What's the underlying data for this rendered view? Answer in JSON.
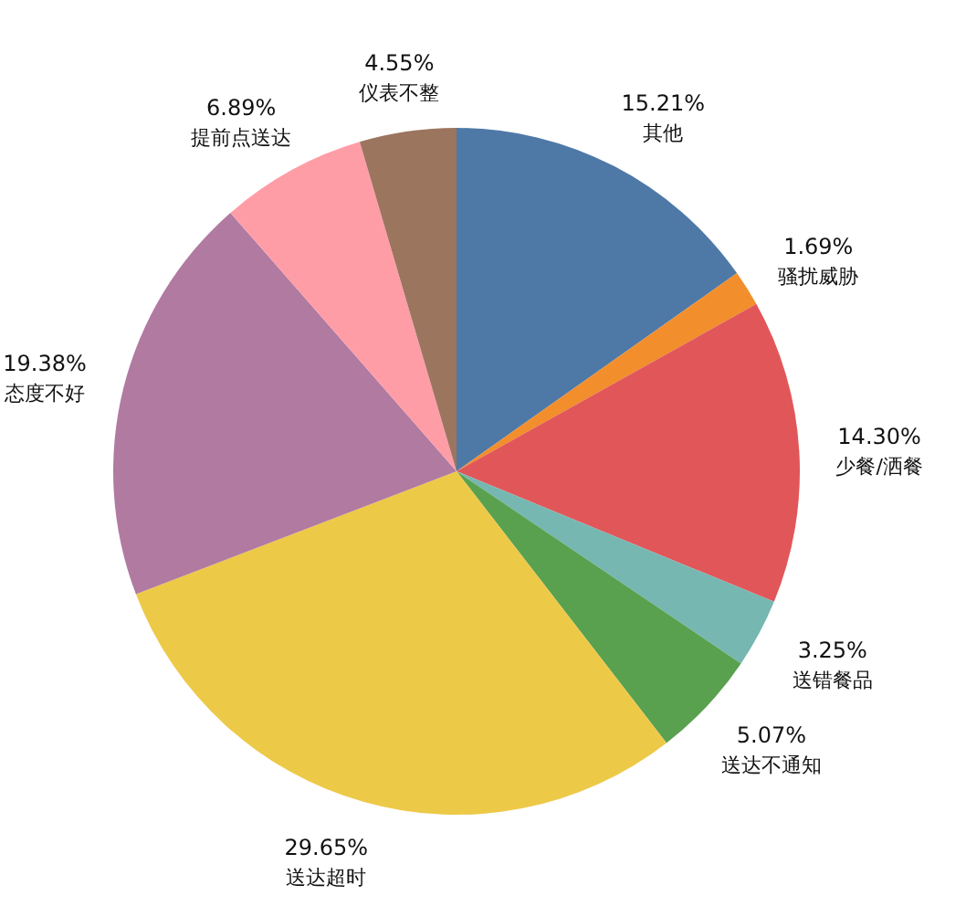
{
  "chart_data": {
    "type": "pie",
    "categories": [
      "其他",
      "骚扰威胁",
      "少餐/洒餐",
      "送错餐品",
      "送达不通知",
      "送达超时",
      "态度不好",
      "提前点送达",
      "仪表不整"
    ],
    "values": [
      15.21,
      1.69,
      14.3,
      3.25,
      5.07,
      29.65,
      19.38,
      6.89,
      4.55
    ],
    "value_labels": [
      "15.21%",
      "1.69%",
      "14.30%",
      "3.25%",
      "5.07%",
      "29.65%",
      "19.38%",
      "6.89%",
      "4.55%"
    ],
    "colors": [
      "#4e79a7",
      "#f28e2b",
      "#e15759",
      "#76b7b2",
      "#59a14f",
      "#edc948",
      "#b07aa1",
      "#ff9da7",
      "#9c755f"
    ]
  }
}
